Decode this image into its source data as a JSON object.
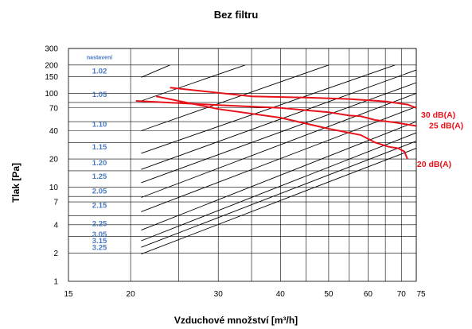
{
  "chart_data": {
    "type": "line",
    "title": "Bez filtru",
    "xlabel": "Vzduchové množství [m³/h]",
    "ylabel": "Tlak [Pa]",
    "x_scale": "log",
    "y_scale": "log",
    "xlim": [
      15,
      75
    ],
    "ylim": [
      1,
      300
    ],
    "x_ticks": [
      15,
      20,
      30,
      40,
      50,
      60,
      70,
      75
    ],
    "x_tick_labels": [
      "15",
      "20",
      "30",
      "40",
      "50",
      "60",
      "70",
      "75"
    ],
    "x_gridlines": [
      20,
      25,
      30,
      35,
      40,
      45,
      50,
      55,
      60,
      65,
      70,
      75
    ],
    "y_ticks": [
      1,
      2,
      4,
      7,
      10,
      20,
      40,
      70,
      100,
      150,
      200,
      300
    ],
    "y_tick_labels": [
      "1",
      "2",
      "4",
      "7",
      "10",
      "20",
      "40",
      "70",
      "100",
      "150",
      "200",
      "300"
    ],
    "y_gridlines": [
      2,
      3,
      4,
      5,
      7,
      8,
      10,
      15,
      20,
      30,
      40,
      50,
      70,
      80,
      100,
      150,
      200,
      300
    ],
    "settings_header": "nastavení",
    "settings_series": [
      {
        "name": "1.02",
        "points": [
          [
            21,
            148
          ],
          [
            24,
            200
          ]
        ]
      },
      {
        "name": "1.05",
        "points": [
          [
            21,
            83
          ],
          [
            34,
            200
          ]
        ]
      },
      {
        "name": "1.10",
        "points": [
          [
            21,
            40
          ],
          [
            50,
            200
          ]
        ]
      },
      {
        "name": "1.15",
        "points": [
          [
            21,
            23
          ],
          [
            68,
            200
          ]
        ]
      },
      {
        "name": "1.20",
        "points": [
          [
            21,
            15.5
          ],
          [
            75,
            177
          ]
        ]
      },
      {
        "name": "1.25",
        "points": [
          [
            21,
            11.2
          ],
          [
            75,
            130
          ]
        ]
      },
      {
        "name": "2.05",
        "points": [
          [
            21,
            7.8
          ],
          [
            75,
            100
          ]
        ]
      },
      {
        "name": "2.15",
        "points": [
          [
            21,
            5.5
          ],
          [
            75,
            72
          ]
        ]
      },
      {
        "name": "2.25",
        "points": [
          [
            21,
            3.5
          ],
          [
            75,
            50
          ]
        ]
      },
      {
        "name": "3.05",
        "points": [
          [
            21,
            2.7
          ],
          [
            75,
            38
          ]
        ]
      },
      {
        "name": "3.15",
        "points": [
          [
            21,
            2.3
          ],
          [
            75,
            31
          ]
        ]
      },
      {
        "name": "3.25",
        "points": [
          [
            21,
            1.95
          ],
          [
            75,
            26
          ]
        ]
      }
    ],
    "series": [
      {
        "name": "30 dB(A)",
        "color": "#e8121b",
        "points": [
          [
            24,
            115
          ],
          [
            35,
            93
          ],
          [
            45,
            90
          ],
          [
            55,
            87
          ],
          [
            65,
            82
          ],
          [
            72,
            76
          ],
          [
            75,
            70
          ]
        ]
      },
      {
        "name": "25 dB(A)",
        "color": "#e8121b",
        "points": [
          [
            20.5,
            83
          ],
          [
            30,
            75
          ],
          [
            40,
            70
          ],
          [
            50,
            63
          ],
          [
            55,
            58
          ],
          [
            58,
            57
          ],
          [
            62,
            52
          ],
          [
            68,
            49
          ],
          [
            75,
            45
          ]
        ]
      },
      {
        "name": "20 dB(A)",
        "color": "#e8121b",
        "points": [
          [
            22.5,
            93
          ],
          [
            30,
            68
          ],
          [
            40,
            55
          ],
          [
            50,
            42
          ],
          [
            58,
            36
          ],
          [
            62,
            30
          ],
          [
            66,
            27
          ],
          [
            69,
            26
          ],
          [
            71,
            24
          ],
          [
            72,
            20
          ]
        ]
      }
    ],
    "colors": {
      "grid": "#000000",
      "settings_label": "#4a7abf",
      "noise_curve": "#e8121b"
    },
    "grid": true
  }
}
